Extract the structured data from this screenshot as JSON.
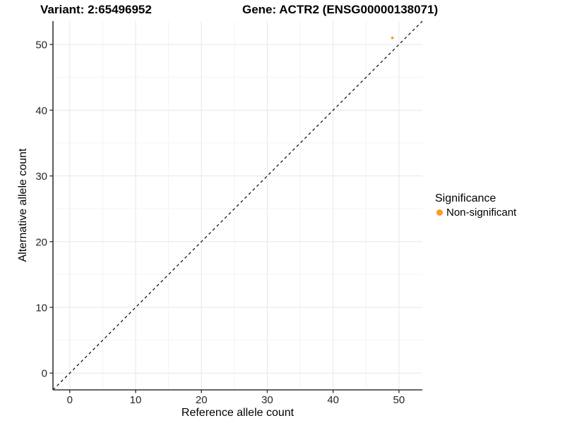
{
  "chart_data": {
    "type": "scatter",
    "title_left": "Variant: 2:65496952",
    "title_right": "Gene: ACTR2 (ENSG00000138071)",
    "xlabel": "Reference allele count",
    "ylabel": "Alternative allele count",
    "xlim": [
      -2.55,
      53.55
    ],
    "ylim": [
      -2.55,
      53.55
    ],
    "x_major_ticks": [
      0,
      10,
      20,
      30,
      40,
      50
    ],
    "y_major_ticks": [
      0,
      10,
      20,
      30,
      40,
      50
    ],
    "x_minor_gridlines": [
      5,
      15,
      25,
      35,
      45
    ],
    "y_minor_gridlines": [
      5,
      15,
      25,
      35,
      45
    ],
    "reference_line": {
      "kind": "identity-diagonal",
      "style": "dashed",
      "color": "#000000"
    },
    "points": [
      {
        "x": 49,
        "y": 51,
        "series": "Non-significant"
      }
    ],
    "legend": {
      "title": "Significance",
      "position": "right",
      "items": [
        {
          "label": "Non-significant",
          "color": "#F99C20"
        }
      ]
    },
    "grid": true,
    "colors": {
      "background": "#FFFFFF",
      "major_grid": "#E7E7E7",
      "minor_grid": "#F4F4F4",
      "axis_line": "#333333",
      "tick_mark": "#333333",
      "point": "#F99C20"
    }
  }
}
